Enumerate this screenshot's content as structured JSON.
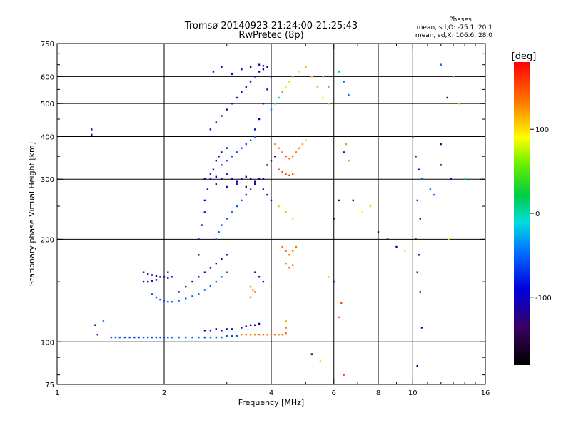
{
  "chart_data": {
    "type": "scatter",
    "title": "Tromsø 20140923 21:24:00-21:25:43",
    "subtitle": "RwPretec (8p)",
    "xlabel": "Frequency [MHz]",
    "ylabel": "Stationary phase Virtual Height [km]",
    "x_scale": "log",
    "y_scale": "log",
    "xlim": [
      1,
      16
    ],
    "ylim": [
      75,
      750
    ],
    "x_ticks": [
      1,
      2,
      4,
      6,
      8,
      10,
      16
    ],
    "x_tick_labels": [
      "1",
      "2",
      "4",
      "6",
      "8",
      "10",
      "16"
    ],
    "y_ticks": [
      75,
      100,
      200,
      300,
      400,
      500,
      600,
      750
    ],
    "y_tick_labels": [
      "75",
      "100",
      "200",
      "300",
      "400",
      "500",
      "600",
      "750"
    ],
    "x_gridlines": [
      2,
      4,
      6,
      8,
      10
    ],
    "y_gridlines": [
      100,
      200,
      300,
      400,
      500,
      600
    ],
    "grid": true,
    "stats": {
      "heading": "Phases",
      "line_o": "mean, sd,O: -75.1, 20.1",
      "line_x": "mean, sd,X: 106.6, 28.0"
    },
    "colorbar": {
      "label": "[deg]",
      "range": [
        -180,
        180
      ],
      "ticks": [
        100,
        0,
        -100
      ],
      "tick_labels": [
        "100",
        "0",
        "-100"
      ]
    },
    "point_encoding": [
      "freq_MHz",
      "height_km",
      "phase_deg"
    ],
    "points": [
      [
        1.25,
        420,
        -110
      ],
      [
        1.25,
        405,
        -120
      ],
      [
        1.28,
        112,
        -100
      ],
      [
        1.3,
        105,
        -110
      ],
      [
        1.35,
        115,
        -40
      ],
      [
        1.42,
        103,
        -60
      ],
      [
        1.46,
        103,
        -60
      ],
      [
        1.5,
        103,
        -55
      ],
      [
        1.55,
        103,
        -60
      ],
      [
        1.6,
        103,
        -58
      ],
      [
        1.65,
        103,
        -62
      ],
      [
        1.7,
        103,
        -60
      ],
      [
        1.75,
        103,
        -55
      ],
      [
        1.8,
        103,
        -60
      ],
      [
        1.85,
        103,
        -62
      ],
      [
        1.9,
        103,
        -58
      ],
      [
        1.95,
        103,
        -60
      ],
      [
        2.0,
        103,
        -55
      ],
      [
        2.05,
        103,
        -60
      ],
      [
        2.1,
        103,
        -62
      ],
      [
        2.2,
        103,
        -60
      ],
      [
        2.3,
        103,
        -58
      ],
      [
        2.4,
        103,
        -55
      ],
      [
        2.5,
        103,
        -60
      ],
      [
        2.6,
        103,
        -62
      ],
      [
        2.7,
        103,
        -60
      ],
      [
        2.8,
        103,
        -55
      ],
      [
        2.9,
        103,
        -58
      ],
      [
        3.0,
        104,
        -60
      ],
      [
        3.1,
        104,
        -65
      ],
      [
        3.2,
        104,
        -60
      ],
      [
        2.6,
        108,
        -100
      ],
      [
        2.7,
        108,
        -95
      ],
      [
        2.8,
        109,
        -90
      ],
      [
        2.9,
        108,
        -100
      ],
      [
        3.0,
        109,
        -105
      ],
      [
        3.1,
        109,
        -95
      ],
      [
        3.3,
        110,
        -100
      ],
      [
        3.4,
        111,
        -90
      ],
      [
        3.5,
        112,
        -95
      ],
      [
        3.6,
        112,
        -100
      ],
      [
        3.7,
        113,
        -90
      ],
      [
        3.3,
        105,
        130
      ],
      [
        3.4,
        105,
        135
      ],
      [
        3.5,
        105,
        140
      ],
      [
        3.6,
        105,
        130
      ],
      [
        3.7,
        105,
        135
      ],
      [
        3.8,
        105,
        140
      ],
      [
        3.9,
        105,
        130
      ],
      [
        4.0,
        105,
        135
      ],
      [
        4.1,
        105,
        140
      ],
      [
        4.2,
        105,
        130
      ],
      [
        4.3,
        105,
        140
      ],
      [
        4.4,
        106,
        135
      ],
      [
        4.4,
        110,
        140
      ],
      [
        4.4,
        115,
        120
      ],
      [
        1.75,
        160,
        -110
      ],
      [
        1.8,
        158,
        -115
      ],
      [
        1.85,
        157,
        -110
      ],
      [
        1.9,
        156,
        -105
      ],
      [
        1.95,
        155,
        -110
      ],
      [
        2.0,
        155,
        -115
      ],
      [
        2.05,
        154,
        -110
      ],
      [
        2.1,
        155,
        -105
      ],
      [
        1.75,
        150,
        -100
      ],
      [
        1.8,
        150,
        -95
      ],
      [
        1.85,
        151,
        -100
      ],
      [
        1.9,
        152,
        -105
      ],
      [
        2.05,
        160,
        -100
      ],
      [
        1.85,
        138,
        -60
      ],
      [
        1.9,
        135,
        -55
      ],
      [
        1.95,
        133,
        -60
      ],
      [
        2.0,
        132,
        -50
      ],
      [
        2.05,
        131,
        -55
      ],
      [
        2.1,
        131,
        -60
      ],
      [
        2.2,
        132,
        -55
      ],
      [
        2.3,
        134,
        -50
      ],
      [
        2.4,
        136,
        -60
      ],
      [
        2.5,
        138,
        -55
      ],
      [
        2.6,
        142,
        -50
      ],
      [
        2.7,
        146,
        -60
      ],
      [
        2.8,
        150,
        -55
      ],
      [
        2.9,
        155,
        -50
      ],
      [
        3.0,
        160,
        -60
      ],
      [
        2.2,
        140,
        -110
      ],
      [
        2.3,
        145,
        -105
      ],
      [
        2.4,
        150,
        -110
      ],
      [
        2.5,
        155,
        -100
      ],
      [
        2.6,
        160,
        -110
      ],
      [
        2.7,
        165,
        -105
      ],
      [
        2.8,
        170,
        -115
      ],
      [
        2.9,
        175,
        -100
      ],
      [
        3.0,
        180,
        -110
      ],
      [
        2.5,
        180,
        -105
      ],
      [
        2.5,
        200,
        -110
      ],
      [
        2.55,
        220,
        -100
      ],
      [
        2.6,
        240,
        -105
      ],
      [
        2.6,
        260,
        -110
      ],
      [
        2.65,
        280,
        -100
      ],
      [
        2.7,
        300,
        -95
      ],
      [
        2.75,
        320,
        -110
      ],
      [
        2.8,
        340,
        -105
      ],
      [
        2.85,
        350,
        -90
      ],
      [
        2.9,
        360,
        -95
      ],
      [
        3.0,
        370,
        -100
      ],
      [
        2.8,
        200,
        -60
      ],
      [
        2.85,
        210,
        -55
      ],
      [
        2.9,
        220,
        -60
      ],
      [
        3.0,
        230,
        -65
      ],
      [
        3.1,
        240,
        -60
      ],
      [
        3.2,
        250,
        -55
      ],
      [
        3.3,
        260,
        -60
      ],
      [
        3.4,
        270,
        -65
      ],
      [
        3.5,
        280,
        -60
      ],
      [
        3.6,
        290,
        -55
      ],
      [
        2.6,
        300,
        -110
      ],
      [
        2.7,
        310,
        -115
      ],
      [
        2.8,
        305,
        -105
      ],
      [
        2.9,
        300,
        -110
      ],
      [
        3.0,
        310,
        -115
      ],
      [
        3.1,
        300,
        -110
      ],
      [
        3.2,
        295,
        -105
      ],
      [
        3.3,
        300,
        -110
      ],
      [
        3.4,
        305,
        -120
      ],
      [
        3.5,
        300,
        -115
      ],
      [
        3.6,
        295,
        -110
      ],
      [
        3.7,
        300,
        -105
      ],
      [
        2.8,
        290,
        -120
      ],
      [
        3.0,
        285,
        -115
      ],
      [
        3.2,
        290,
        -110
      ],
      [
        3.4,
        285,
        -120
      ],
      [
        3.6,
        290,
        -115
      ],
      [
        3.8,
        300,
        -110
      ],
      [
        2.9,
        330,
        -60
      ],
      [
        3.0,
        340,
        -55
      ],
      [
        3.1,
        350,
        -60
      ],
      [
        3.2,
        360,
        -65
      ],
      [
        3.3,
        370,
        -60
      ],
      [
        3.4,
        380,
        -55
      ],
      [
        3.5,
        390,
        -60
      ],
      [
        3.6,
        400,
        -65
      ],
      [
        2.7,
        420,
        -110
      ],
      [
        2.8,
        440,
        -100
      ],
      [
        2.9,
        460,
        -105
      ],
      [
        3.0,
        480,
        -110
      ],
      [
        3.1,
        500,
        -115
      ],
      [
        3.2,
        520,
        -110
      ],
      [
        3.3,
        540,
        -105
      ],
      [
        3.4,
        560,
        -100
      ],
      [
        3.5,
        580,
        -110
      ],
      [
        3.6,
        600,
        -105
      ],
      [
        3.7,
        620,
        -110
      ],
      [
        3.8,
        630,
        -120
      ],
      [
        2.75,
        620,
        -100
      ],
      [
        2.9,
        640,
        -110
      ],
      [
        3.1,
        610,
        -100
      ],
      [
        3.3,
        630,
        -105
      ],
      [
        3.5,
        640,
        -110
      ],
      [
        3.7,
        650,
        -115
      ],
      [
        3.8,
        645,
        -120
      ],
      [
        3.9,
        640,
        -110
      ],
      [
        4.0,
        600,
        -90
      ],
      [
        3.9,
        550,
        -95
      ],
      [
        3.8,
        500,
        -100
      ],
      [
        3.7,
        450,
        -110
      ],
      [
        3.6,
        420,
        -105
      ],
      [
        4.0,
        480,
        -40
      ],
      [
        4.1,
        500,
        -20
      ],
      [
        4.2,
        520,
        10
      ],
      [
        4.3,
        540,
        40
      ],
      [
        4.4,
        560,
        80
      ],
      [
        4.5,
        580,
        110
      ],
      [
        4.6,
        600,
        120
      ],
      [
        4.8,
        620,
        100
      ],
      [
        5.0,
        640,
        120
      ],
      [
        5.2,
        600,
        110
      ],
      [
        5.4,
        560,
        120
      ],
      [
        5.6,
        520,
        100
      ],
      [
        5.8,
        500,
        60
      ],
      [
        4.1,
        380,
        120
      ],
      [
        4.2,
        370,
        130
      ],
      [
        4.3,
        360,
        140
      ],
      [
        4.4,
        350,
        150
      ],
      [
        4.5,
        345,
        145
      ],
      [
        4.6,
        350,
        140
      ],
      [
        4.7,
        360,
        130
      ],
      [
        4.8,
        370,
        135
      ],
      [
        4.9,
        380,
        120
      ],
      [
        5.0,
        390,
        110
      ],
      [
        4.2,
        320,
        160
      ],
      [
        4.3,
        315,
        155
      ],
      [
        4.4,
        310,
        150
      ],
      [
        4.5,
        308,
        160
      ],
      [
        4.6,
        310,
        155
      ],
      [
        3.9,
        330,
        -140
      ],
      [
        4.0,
        340,
        -130
      ],
      [
        4.1,
        350,
        -150
      ],
      [
        3.8,
        280,
        -100
      ],
      [
        3.9,
        270,
        -110
      ],
      [
        4.0,
        260,
        -105
      ],
      [
        4.2,
        250,
        110
      ],
      [
        4.4,
        240,
        120
      ],
      [
        4.6,
        230,
        100
      ],
      [
        4.3,
        190,
        140
      ],
      [
        4.4,
        185,
        145
      ],
      [
        4.5,
        180,
        140
      ],
      [
        4.6,
        185,
        130
      ],
      [
        4.7,
        190,
        135
      ],
      [
        4.4,
        170,
        130
      ],
      [
        4.5,
        165,
        140
      ],
      [
        4.6,
        168,
        135
      ],
      [
        3.6,
        160,
        -100
      ],
      [
        3.7,
        155,
        -105
      ],
      [
        3.8,
        150,
        -95
      ],
      [
        3.5,
        145,
        130
      ],
      [
        3.55,
        142,
        135
      ],
      [
        3.6,
        140,
        140
      ],
      [
        3.5,
        135,
        130
      ],
      [
        5.6,
        600,
        60
      ],
      [
        5.8,
        560,
        40
      ],
      [
        6.2,
        620,
        20
      ],
      [
        6.4,
        580,
        -60
      ],
      [
        6.6,
        530,
        -50
      ],
      [
        6.5,
        380,
        120
      ],
      [
        6.6,
        340,
        130
      ],
      [
        6.4,
        360,
        -120
      ],
      [
        6.2,
        260,
        -140
      ],
      [
        6.0,
        230,
        -160
      ],
      [
        5.8,
        155,
        110
      ],
      [
        6.0,
        150,
        -100
      ],
      [
        6.3,
        130,
        150
      ],
      [
        6.2,
        118,
        140
      ],
      [
        6.4,
        80,
        160
      ],
      [
        5.5,
        88,
        80
      ],
      [
        5.2,
        92,
        -130
      ],
      [
        6.8,
        260,
        -110
      ],
      [
        7.2,
        240,
        90
      ],
      [
        7.6,
        250,
        110
      ],
      [
        8.0,
        210,
        -150
      ],
      [
        8.5,
        200,
        -120
      ],
      [
        9.0,
        190,
        -100
      ],
      [
        9.5,
        185,
        100
      ],
      [
        10.0,
        400,
        -60
      ],
      [
        10.2,
        350,
        -80
      ],
      [
        10.4,
        320,
        -100
      ],
      [
        10.6,
        300,
        -50
      ],
      [
        10.3,
        260,
        -60
      ],
      [
        10.5,
        230,
        -100
      ],
      [
        10.2,
        200,
        -110
      ],
      [
        10.4,
        180,
        -110
      ],
      [
        10.3,
        160,
        -110
      ],
      [
        10.5,
        140,
        -100
      ],
      [
        10.6,
        110,
        -110
      ],
      [
        10.3,
        85,
        -120
      ],
      [
        11.2,
        280,
        -50
      ],
      [
        12.0,
        650,
        -50
      ],
      [
        12.5,
        520,
        -130
      ],
      [
        12.0,
        380,
        -110
      ],
      [
        12.8,
        300,
        -100
      ],
      [
        11.5,
        270,
        -60
      ],
      [
        12.0,
        330,
        -110
      ],
      [
        13.0,
        600,
        120
      ],
      [
        12.6,
        200,
        80
      ],
      [
        13.5,
        500,
        110
      ],
      [
        14.0,
        300,
        10
      ]
    ]
  }
}
